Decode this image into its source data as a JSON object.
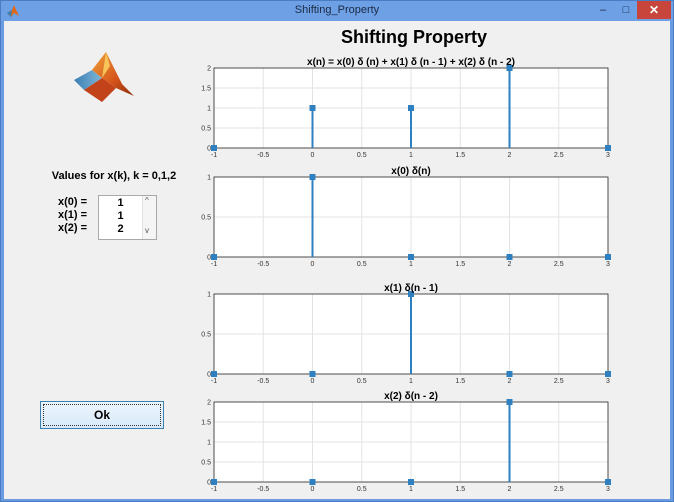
{
  "window": {
    "title": "Shifting_Property",
    "minimize_glyph": "–",
    "maximize_glyph": "□",
    "close_glyph": "✕"
  },
  "app_icon": "matlab-logo-icon",
  "logo": "matlab-logo-icon",
  "main_title": "Shifting Property",
  "inputs": {
    "label": "Values for x(k), k = 0,1,2",
    "rows": [
      {
        "label": "x(0) =",
        "value": "1"
      },
      {
        "label": "x(1) =",
        "value": "1"
      },
      {
        "label": "x(2) =",
        "value": "2"
      }
    ],
    "scroll_up": "^",
    "scroll_down": "v"
  },
  "ok_button": "Ok",
  "colors": {
    "stem": "#2f80c0",
    "titlebar": "#6ea0e6",
    "client": "#f0f0f0",
    "close": "#c7453b"
  },
  "chart_data": [
    {
      "type": "stem",
      "title": "x(n) =    x(0) δ (n) + x(1) δ (n - 1) + x(2) δ (n - 2)",
      "x": [
        -1,
        0,
        1,
        2,
        3
      ],
      "y": [
        0,
        1,
        1,
        2,
        0
      ],
      "xlim": [
        -1,
        3
      ],
      "ylim": [
        0,
        2
      ],
      "xticks": [
        "-1",
        "-0.5",
        "0",
        "0.5",
        "1",
        "1.5",
        "2",
        "2.5",
        "3"
      ],
      "yticks": [
        "0",
        "0.5",
        "1",
        "1.5",
        "2"
      ],
      "grid": true
    },
    {
      "type": "stem",
      "title": "x(0) δ(n)",
      "x": [
        -1,
        0,
        1,
        2,
        3
      ],
      "y": [
        0,
        1,
        0,
        0,
        0
      ],
      "xlim": [
        -1,
        3
      ],
      "ylim": [
        0,
        1
      ],
      "xticks": [
        "-1",
        "-0.5",
        "0",
        "0.5",
        "1",
        "1.5",
        "2",
        "2.5",
        "3"
      ],
      "yticks": [
        "0",
        "0.5",
        "1"
      ],
      "grid": true
    },
    {
      "type": "stem",
      "title": "x(1) δ(n - 1)",
      "x": [
        -1,
        0,
        1,
        2,
        3
      ],
      "y": [
        0,
        0,
        1,
        0,
        0
      ],
      "xlim": [
        -1,
        3
      ],
      "ylim": [
        0,
        1
      ],
      "xticks": [
        "-1",
        "-0.5",
        "0",
        "0.5",
        "1",
        "1.5",
        "2",
        "2.5",
        "3"
      ],
      "yticks": [
        "0",
        "0.5",
        "1"
      ],
      "grid": true
    },
    {
      "type": "stem",
      "title": "x(2) δ(n - 2)",
      "x": [
        -1,
        0,
        1,
        2,
        3
      ],
      "y": [
        0,
        0,
        0,
        2,
        0
      ],
      "xlim": [
        -1,
        3
      ],
      "ylim": [
        0,
        2
      ],
      "xticks": [
        "-1",
        "-0.5",
        "0",
        "0.5",
        "1",
        "1.5",
        "2",
        "2.5",
        "3"
      ],
      "yticks": [
        "0",
        "0.5",
        "1",
        "1.5",
        "2"
      ],
      "grid": true
    }
  ]
}
